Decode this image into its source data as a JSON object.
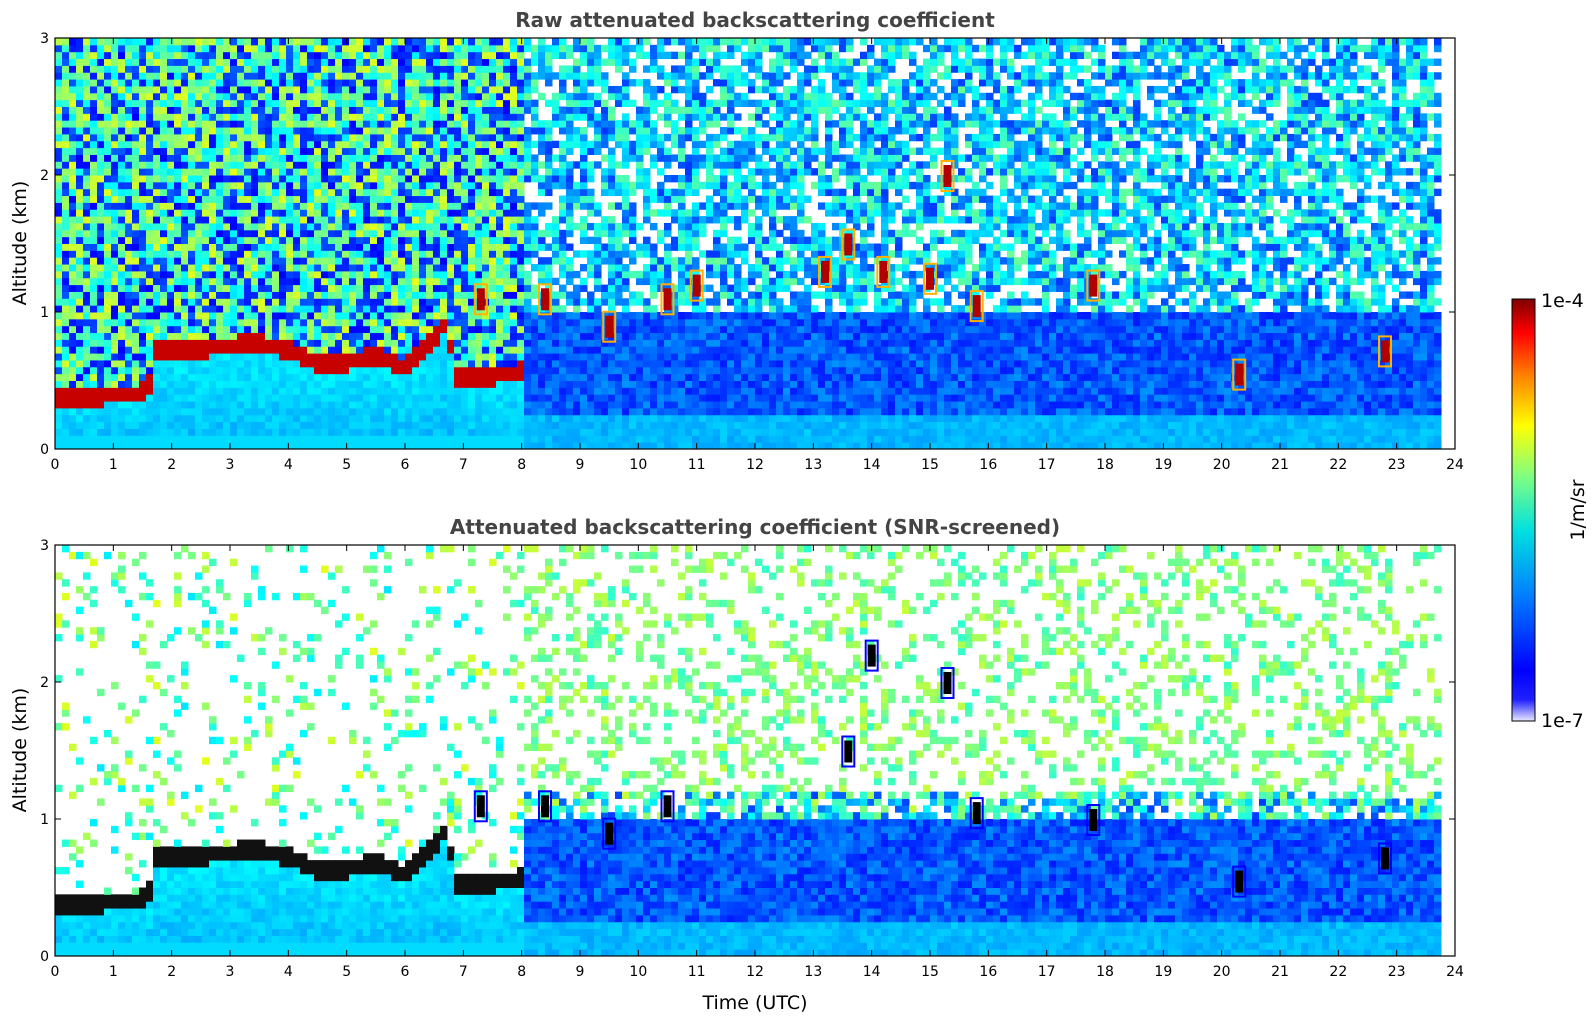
{
  "chart_data": [
    {
      "type": "heatmap",
      "title": "Raw attenuated backscattering coefficient",
      "xlabel": "",
      "ylabel": "Altitude (km)",
      "xlim": [
        0,
        24
      ],
      "ylim": [
        0,
        3
      ],
      "xticks": [
        "0",
        "1",
        "2",
        "3",
        "4",
        "5",
        "6",
        "7",
        "8",
        "9",
        "10",
        "11",
        "12",
        "13",
        "14",
        "15",
        "16",
        "17",
        "18",
        "19",
        "20",
        "21",
        "22",
        "23",
        "24"
      ],
      "yticks": [
        "0",
        "1",
        "2",
        "3"
      ],
      "grid": false,
      "cloud_base_km": [
        [
          0,
          0.35
        ],
        [
          0.5,
          0.36
        ],
        [
          1,
          0.38
        ],
        [
          1.6,
          0.4
        ],
        [
          1.7,
          0.7
        ],
        [
          2.5,
          0.72
        ],
        [
          3,
          0.74
        ],
        [
          3.5,
          0.76
        ],
        [
          4,
          0.7
        ],
        [
          4.5,
          0.62
        ],
        [
          5,
          0.62
        ],
        [
          5.5,
          0.66
        ],
        [
          6,
          0.58
        ],
        [
          6.5,
          0.8
        ],
        [
          6.7,
          0.9
        ],
        [
          6.9,
          0.5
        ],
        [
          7.5,
          0.52
        ],
        [
          8,
          0.55
        ]
      ],
      "cloud_patches": [
        {
          "t": 7.3,
          "z": 1.1
        },
        {
          "t": 8.4,
          "z": 1.1
        },
        {
          "t": 9.5,
          "z": 0.9
        },
        {
          "t": 10.5,
          "z": 1.1
        },
        {
          "t": 11.0,
          "z": 1.2
        },
        {
          "t": 13.2,
          "z": 1.3
        },
        {
          "t": 13.6,
          "z": 1.5
        },
        {
          "t": 14.2,
          "z": 1.3
        },
        {
          "t": 15.0,
          "z": 1.25
        },
        {
          "t": 15.3,
          "z": 2.0
        },
        {
          "t": 15.8,
          "z": 1.05
        },
        {
          "t": 17.8,
          "z": 1.2
        },
        {
          "t": 20.3,
          "z": 0.55
        },
        {
          "t": 22.8,
          "z": 0.72
        }
      ]
    },
    {
      "type": "heatmap",
      "title": "Attenuated backscattering coefficient (SNR-screened)",
      "xlabel": "Time (UTC)",
      "ylabel": "Altitude (km)",
      "xlim": [
        0,
        24
      ],
      "ylim": [
        0,
        3
      ],
      "xticks": [
        "0",
        "1",
        "2",
        "3",
        "4",
        "5",
        "6",
        "7",
        "8",
        "9",
        "10",
        "11",
        "12",
        "13",
        "14",
        "15",
        "16",
        "17",
        "18",
        "19",
        "20",
        "21",
        "22",
        "23",
        "24"
      ],
      "yticks": [
        "0",
        "1",
        "2",
        "3"
      ],
      "grid": false,
      "cloud_base_km": [
        [
          0,
          0.35
        ],
        [
          0.5,
          0.36
        ],
        [
          1,
          0.38
        ],
        [
          1.6,
          0.4
        ],
        [
          1.7,
          0.7
        ],
        [
          2.5,
          0.72
        ],
        [
          3,
          0.74
        ],
        [
          3.5,
          0.76
        ],
        [
          4,
          0.7
        ],
        [
          4.5,
          0.62
        ],
        [
          5,
          0.62
        ],
        [
          5.5,
          0.66
        ],
        [
          6,
          0.58
        ],
        [
          6.5,
          0.8
        ],
        [
          6.7,
          0.9
        ],
        [
          6.9,
          0.5
        ],
        [
          7.5,
          0.52
        ],
        [
          8,
          0.55
        ]
      ],
      "cloud_patches": [
        {
          "t": 7.3,
          "z": 1.1
        },
        {
          "t": 8.4,
          "z": 1.1
        },
        {
          "t": 9.5,
          "z": 0.9
        },
        {
          "t": 10.5,
          "z": 1.1
        },
        {
          "t": 13.6,
          "z": 1.5
        },
        {
          "t": 14.0,
          "z": 2.2
        },
        {
          "t": 15.3,
          "z": 2.0
        },
        {
          "t": 15.8,
          "z": 1.05
        },
        {
          "t": 17.8,
          "z": 1.0
        },
        {
          "t": 20.3,
          "z": 0.55
        },
        {
          "t": 22.8,
          "z": 0.72
        }
      ]
    }
  ],
  "colorbar": {
    "label": "1/m/sr",
    "max_label": "1e-4",
    "min_label": "1e-7",
    "scale": "log",
    "colormap": "jet",
    "colors": [
      "#e8e8ff",
      "#0000ff",
      "#0080ff",
      "#00e0e0",
      "#80ff80",
      "#ffff00",
      "#ff8000",
      "#ff0000",
      "#800000"
    ]
  }
}
